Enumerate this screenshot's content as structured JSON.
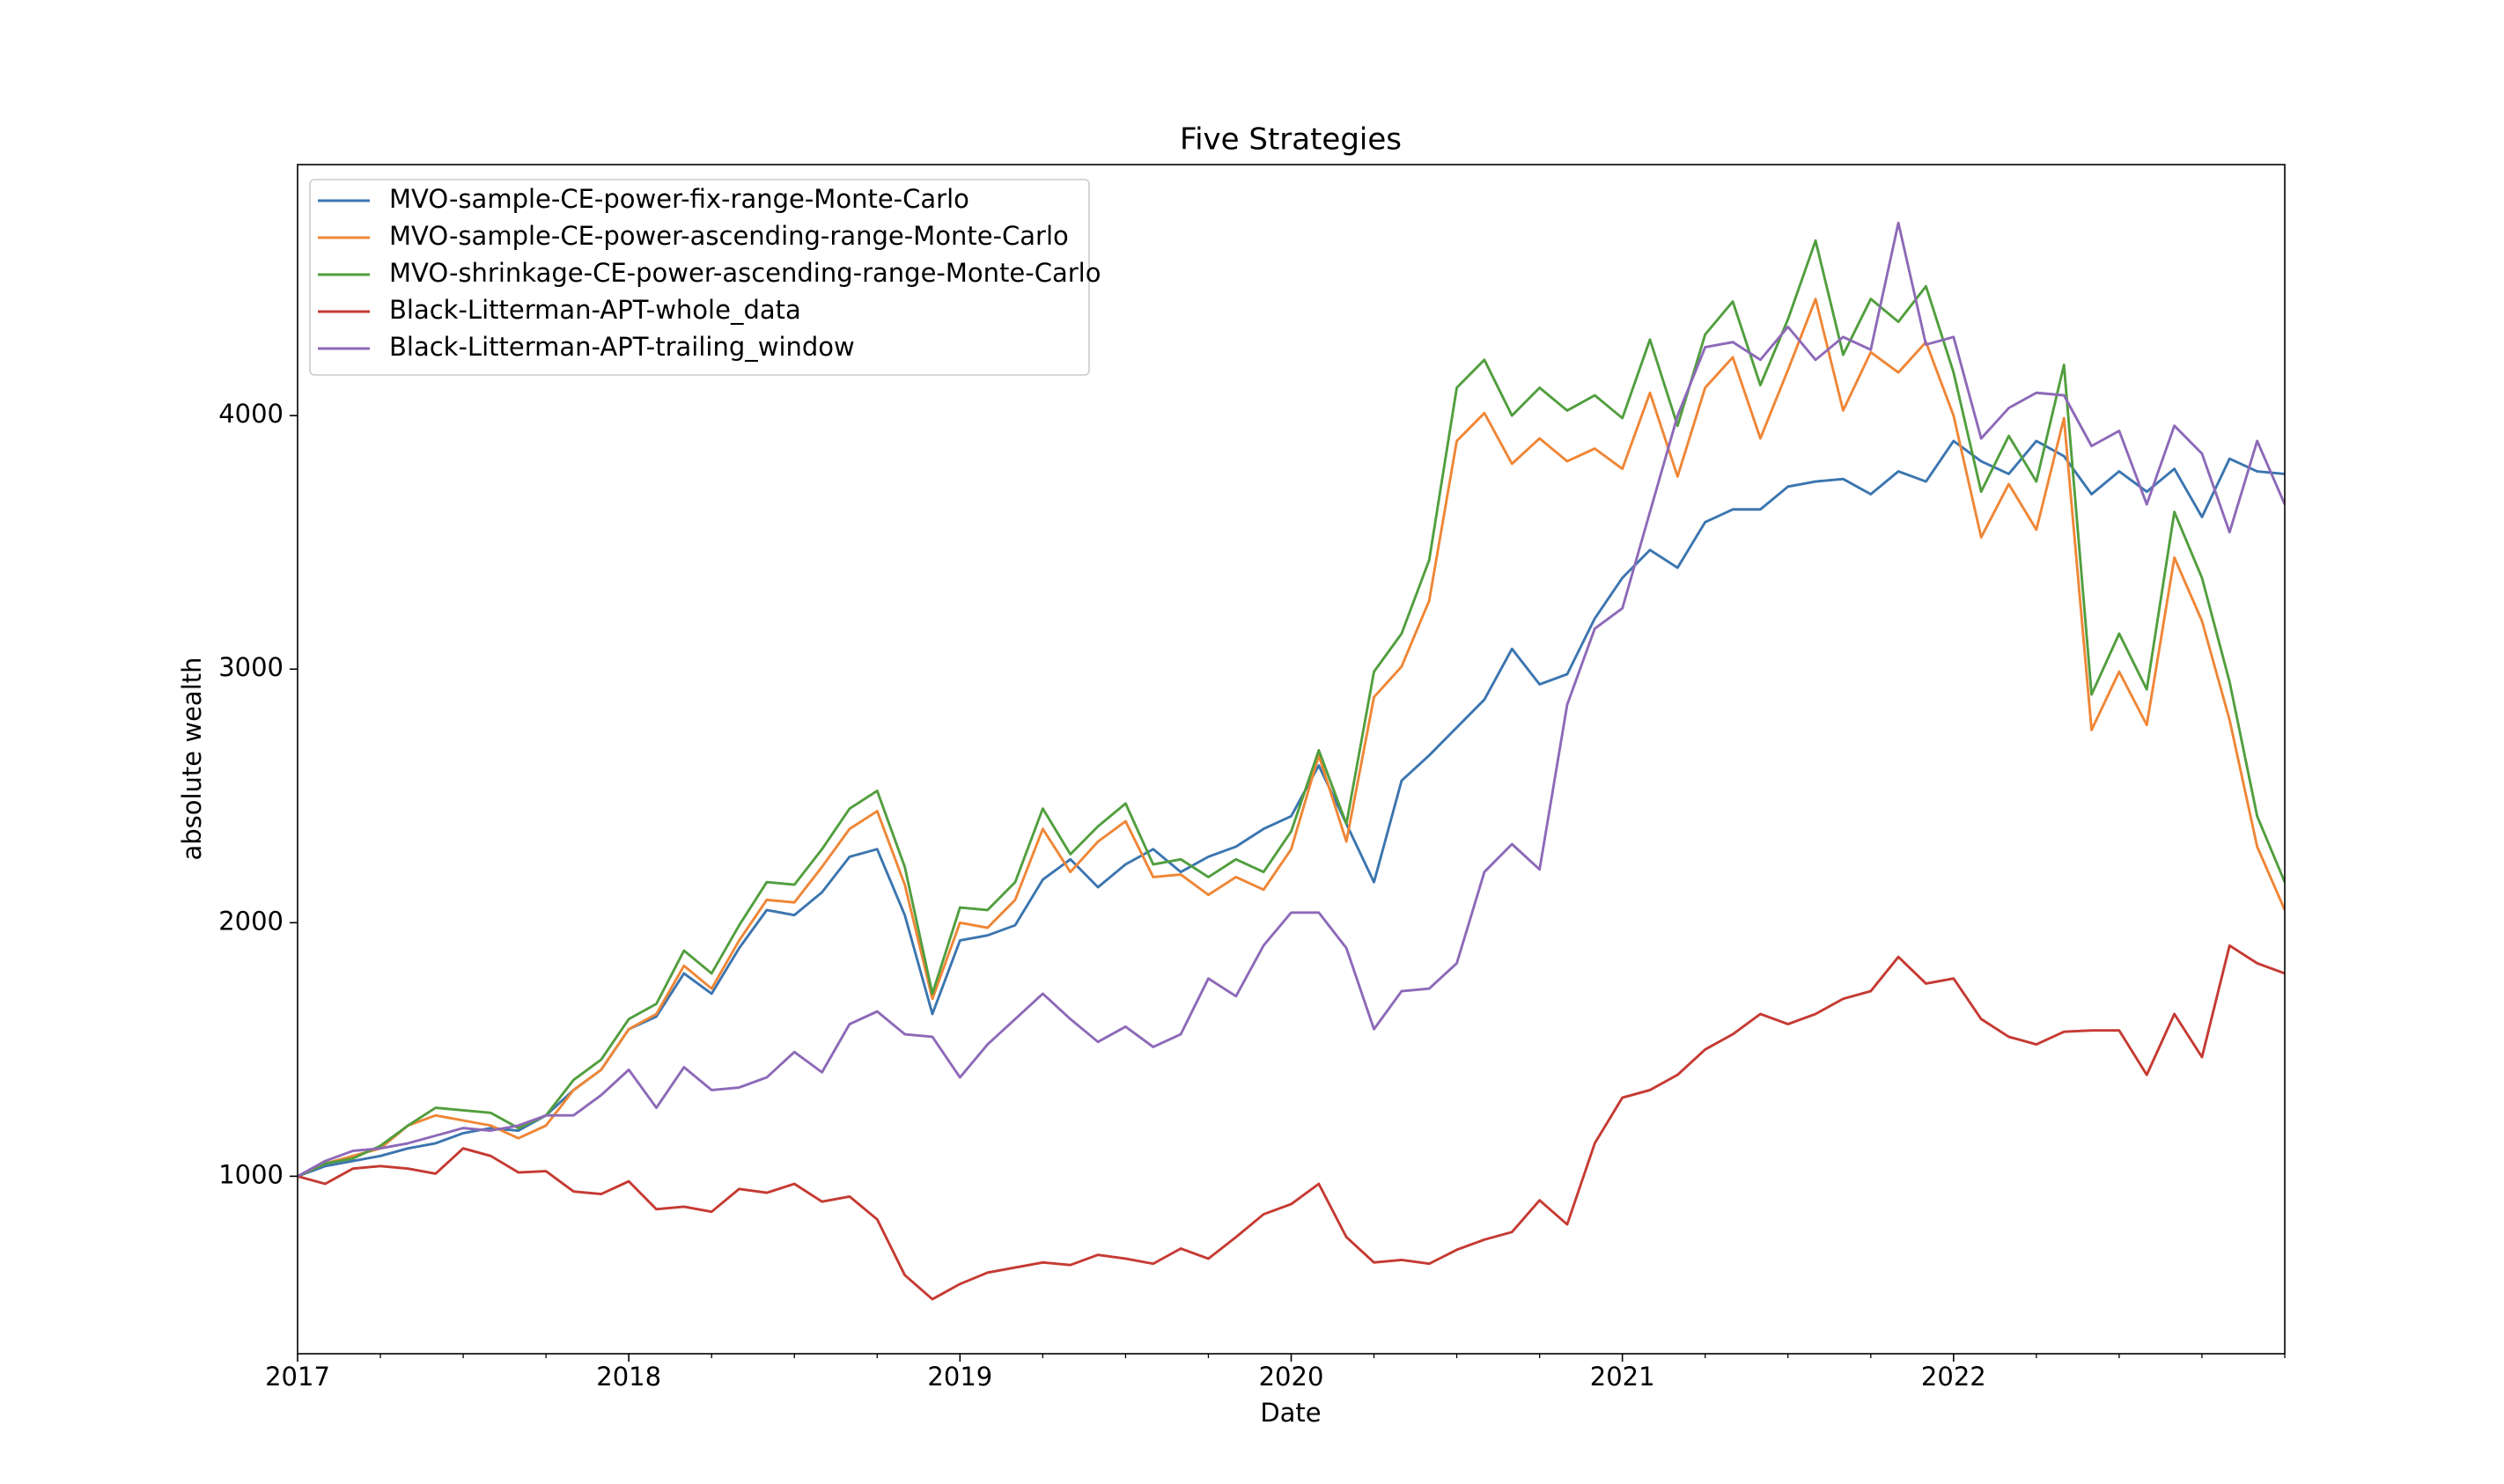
{
  "chart_data": {
    "type": "line",
    "title": "Five Strategies",
    "x_label": "Date",
    "y_label": "absolute wealth",
    "categories": [
      "2017",
      null,
      null,
      null,
      null,
      null,
      null,
      null,
      null,
      null,
      null,
      null,
      "2018",
      null,
      null,
      null,
      null,
      null,
      null,
      null,
      null,
      null,
      null,
      null,
      "2019",
      null,
      null,
      null,
      null,
      null,
      null,
      null,
      null,
      null,
      null,
      null,
      "2020",
      null,
      null,
      null,
      null,
      null,
      null,
      null,
      null,
      null,
      null,
      null,
      "2021",
      null,
      null,
      null,
      null,
      null,
      null,
      null,
      null,
      null,
      null,
      null,
      "2022",
      null,
      null,
      null,
      null,
      null,
      null,
      null,
      null,
      null,
      null,
      null,
      null
    ],
    "series": [
      {
        "name": "MVO-sample-CE-power-fix-range-Monte-Carlo",
        "color": "#3b75af",
        "values": [
          1000,
          1040,
          1060,
          1080,
          1110,
          1130,
          1170,
          1190,
          1180,
          1240,
          1340,
          1420,
          1580,
          1630,
          1800,
          1720,
          1900,
          2050,
          2030,
          2120,
          2260,
          2290,
          2030,
          1640,
          1930,
          1950,
          1990,
          2170,
          2250,
          2140,
          2230,
          2290,
          2200,
          2260,
          2300,
          2370,
          2420,
          2620,
          2390,
          2160,
          2560,
          2660,
          2770,
          2880,
          3080,
          2940,
          2980,
          3200,
          3360,
          3470,
          3400,
          3580,
          3630,
          3630,
          3720,
          3740,
          3750,
          3690,
          3780,
          3740,
          3900,
          3820,
          3770,
          3900,
          3840,
          3690,
          3780,
          3700,
          3790,
          3600,
          3830,
          3780,
          3770
        ]
      },
      {
        "name": "MVO-sample-CE-power-ascending-range-Monte-Carlo",
        "color": "#ef8636",
        "values": [
          1000,
          1050,
          1080,
          1110,
          1200,
          1240,
          1220,
          1200,
          1150,
          1200,
          1340,
          1420,
          1580,
          1640,
          1830,
          1740,
          1930,
          2090,
          2080,
          2220,
          2370,
          2440,
          2150,
          1700,
          2000,
          1980,
          2090,
          2370,
          2200,
          2320,
          2400,
          2180,
          2190,
          2110,
          2180,
          2130,
          2290,
          2660,
          2320,
          2890,
          3010,
          3270,
          3900,
          4010,
          3810,
          3910,
          3820,
          3870,
          3790,
          4090,
          3760,
          4110,
          4230,
          3910,
          4180,
          4460,
          4020,
          4250,
          4170,
          4290,
          4000,
          3520,
          3730,
          3550,
          3990,
          2760,
          2990,
          2780,
          3440,
          3190,
          2800,
          2300,
          2050
        ]
      },
      {
        "name": "MVO-shrinkage-CE-power-ascending-range-Monte-Carlo",
        "color": "#519e3e",
        "values": [
          1000,
          1050,
          1070,
          1120,
          1200,
          1270,
          1260,
          1250,
          1190,
          1240,
          1380,
          1460,
          1620,
          1680,
          1890,
          1800,
          1990,
          2160,
          2150,
          2290,
          2450,
          2520,
          2220,
          1720,
          2060,
          2050,
          2160,
          2450,
          2270,
          2380,
          2470,
          2230,
          2250,
          2180,
          2250,
          2200,
          2360,
          2680,
          2390,
          2990,
          3140,
          3430,
          4110,
          4220,
          4000,
          4110,
          4020,
          4080,
          3990,
          4300,
          3960,
          4320,
          4450,
          4120,
          4380,
          4690,
          4240,
          4460,
          4370,
          4510,
          4170,
          3700,
          3920,
          3740,
          4200,
          2900,
          3140,
          2920,
          3620,
          3360,
          2950,
          2420,
          2160
        ]
      },
      {
        "name": "Black-Litterman-APT-whole_data",
        "color": "#c53a32",
        "values": [
          1000,
          970,
          1030,
          1040,
          1030,
          1010,
          1110,
          1080,
          1015,
          1020,
          940,
          930,
          980,
          870,
          880,
          860,
          950,
          935,
          970,
          900,
          920,
          830,
          610,
          515,
          575,
          620,
          640,
          660,
          650,
          690,
          675,
          655,
          715,
          675,
          760,
          850,
          890,
          970,
          760,
          660,
          670,
          655,
          710,
          750,
          780,
          905,
          810,
          1130,
          1310,
          1340,
          1400,
          1500,
          1560,
          1640,
          1600,
          1640,
          1700,
          1730,
          1865,
          1760,
          1780,
          1620,
          1550,
          1520,
          1570,
          1575,
          1575,
          1400,
          1640,
          1470,
          1910,
          1840,
          1800
        ]
      },
      {
        "name": "Black-Litterman-APT-trailing_window",
        "color": "#8d69b8",
        "values": [
          1000,
          1060,
          1100,
          1110,
          1130,
          1160,
          1190,
          1180,
          1200,
          1240,
          1240,
          1320,
          1420,
          1270,
          1430,
          1340,
          1350,
          1390,
          1490,
          1410,
          1600,
          1650,
          1560,
          1550,
          1390,
          1520,
          1620,
          1720,
          1620,
          1530,
          1590,
          1510,
          1560,
          1780,
          1710,
          1910,
          2040,
          2040,
          1900,
          1580,
          1730,
          1740,
          1840,
          2200,
          2310,
          2210,
          2860,
          3160,
          3240,
          3620,
          4000,
          4270,
          4290,
          4220,
          4350,
          4220,
          4310,
          4260,
          4760,
          4280,
          4310,
          3910,
          4030,
          4090,
          4080,
          3880,
          3940,
          3650,
          3960,
          3850,
          3540,
          3900,
          3650
        ]
      }
    ],
    "ylim": [
      300,
      4990
    ],
    "yticks": [
      1000,
      2000,
      3000,
      4000
    ],
    "grid": false,
    "legend": "upper left"
  }
}
